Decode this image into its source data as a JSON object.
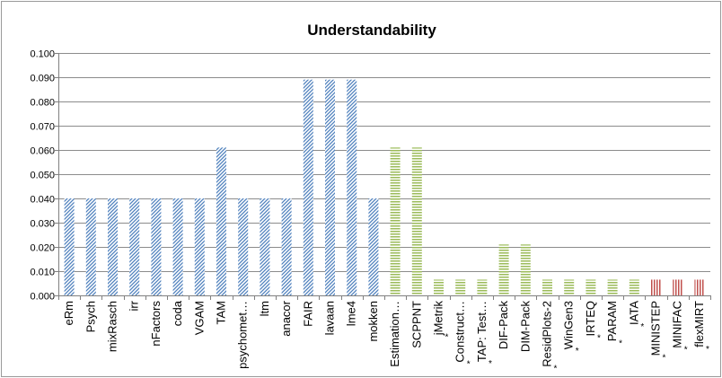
{
  "chart_data": {
    "type": "bar",
    "title": "Understandability",
    "xlabel": "",
    "ylabel": "",
    "ylim": [
      0,
      0.1
    ],
    "yticks": [
      "0.000",
      "0.010",
      "0.020",
      "0.030",
      "0.040",
      "0.050",
      "0.060",
      "0.070",
      "0.080",
      "0.090",
      "0.100"
    ],
    "grid": true,
    "legend": "none",
    "colors": {
      "blue": "#4f81bd",
      "green": "#9bbb59",
      "red": "#c0504d",
      "grid": "#8c8c8c",
      "axis": "#808080"
    },
    "bars": [
      {
        "label": "eRm",
        "value": 0.04,
        "group": "blue",
        "star": false
      },
      {
        "label": "Psych",
        "value": 0.04,
        "group": "blue",
        "star": false
      },
      {
        "label": "mixRasch",
        "value": 0.04,
        "group": "blue",
        "star": false
      },
      {
        "label": "irr",
        "value": 0.04,
        "group": "blue",
        "star": false
      },
      {
        "label": "nFactors",
        "value": 0.04,
        "group": "blue",
        "star": false
      },
      {
        "label": "coda",
        "value": 0.04,
        "group": "blue",
        "star": false
      },
      {
        "label": "VGAM",
        "value": 0.04,
        "group": "blue",
        "star": false
      },
      {
        "label": "TAM",
        "value": 0.061,
        "group": "blue",
        "star": false
      },
      {
        "label": "psychomet…",
        "value": 0.04,
        "group": "blue",
        "star": false
      },
      {
        "label": "ltm",
        "value": 0.04,
        "group": "blue",
        "star": false
      },
      {
        "label": "anacor",
        "value": 0.04,
        "group": "blue",
        "star": false
      },
      {
        "label": "FAIR",
        "value": 0.089,
        "group": "blue",
        "star": false
      },
      {
        "label": "lavaan",
        "value": 0.089,
        "group": "blue",
        "star": false
      },
      {
        "label": "lme4",
        "value": 0.089,
        "group": "blue",
        "star": false
      },
      {
        "label": "mokken",
        "value": 0.04,
        "group": "blue",
        "star": false
      },
      {
        "label": "Estimation…",
        "value": 0.061,
        "group": "green",
        "star": false
      },
      {
        "label": "SCPPNT",
        "value": 0.061,
        "group": "green",
        "star": false
      },
      {
        "label": "jMetrik",
        "value": 0.0065,
        "group": "green",
        "star": true
      },
      {
        "label": "Construct…",
        "value": 0.0065,
        "group": "green",
        "star": true
      },
      {
        "label": "TAP: Test…",
        "value": 0.0065,
        "group": "green",
        "star": true
      },
      {
        "label": "DIF-Pack",
        "value": 0.021,
        "group": "green",
        "star": false
      },
      {
        "label": "DIM-Pack",
        "value": 0.021,
        "group": "green",
        "star": false
      },
      {
        "label": "ResidPlots-2",
        "value": 0.0065,
        "group": "green",
        "star": true
      },
      {
        "label": "WinGen3",
        "value": 0.0065,
        "group": "green",
        "star": true
      },
      {
        "label": "IRTEQ",
        "value": 0.0065,
        "group": "green",
        "star": true
      },
      {
        "label": "PARAM",
        "value": 0.0065,
        "group": "green",
        "star": true
      },
      {
        "label": "IATA",
        "value": 0.0065,
        "group": "green",
        "star": true
      },
      {
        "label": "MINISTEP",
        "value": 0.0065,
        "group": "red",
        "star": true
      },
      {
        "label": "MINIFAC",
        "value": 0.0065,
        "group": "red",
        "star": true
      },
      {
        "label": "flexMIRT",
        "value": 0.0065,
        "group": "red",
        "star": true
      }
    ]
  }
}
